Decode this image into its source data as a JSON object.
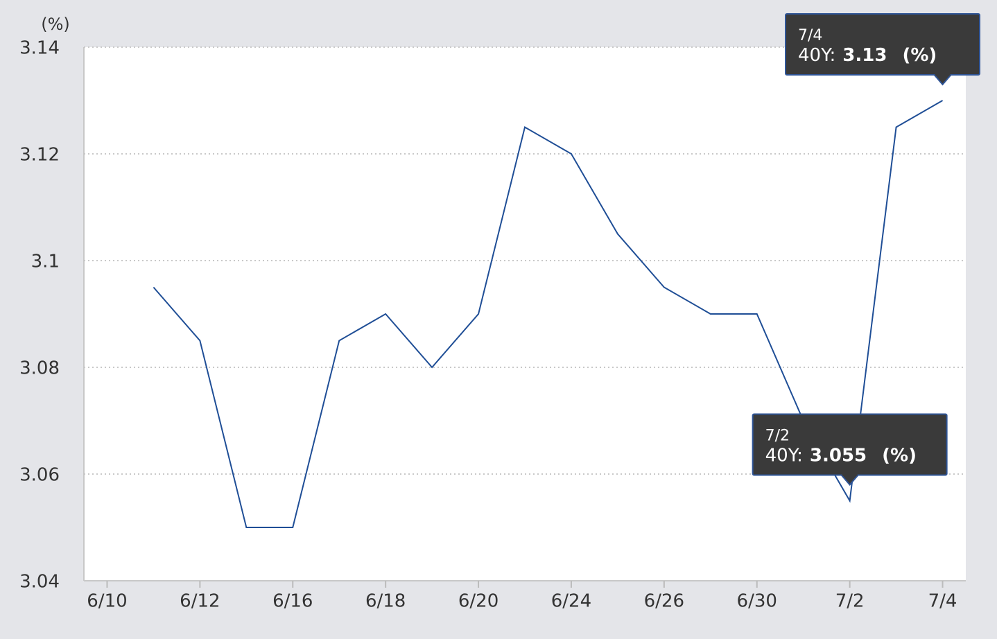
{
  "chart_data": {
    "type": "line",
    "y_unit": "(%)",
    "categories": [
      null,
      "6/10",
      null,
      "6/12",
      null,
      "6/16",
      null,
      "6/18",
      null,
      "6/20",
      null,
      "6/24",
      null,
      "6/26",
      null,
      "6/30",
      null,
      "7/2",
      null,
      "7/4"
    ],
    "series": [
      {
        "name": "40Y",
        "color": "#1f4e96",
        "values": [
          null,
          null,
          3.095,
          3.085,
          3.05,
          3.05,
          3.085,
          3.09,
          3.08,
          3.09,
          3.125,
          3.12,
          3.105,
          3.095,
          3.09,
          3.09,
          3.07,
          3.055,
          3.125,
          3.13
        ]
      }
    ],
    "ylim": [
      3.04,
      3.14
    ],
    "yticks": [
      3.04,
      3.06,
      3.08,
      3.1,
      3.12,
      3.14
    ],
    "grid": true,
    "tooltips": [
      {
        "date": "7/4",
        "series": "40Y:",
        "value": 3.13,
        "unit": "(%)"
      },
      {
        "date": "7/2",
        "series": "40Y:",
        "value": 3.055,
        "unit": "(%)"
      }
    ]
  }
}
